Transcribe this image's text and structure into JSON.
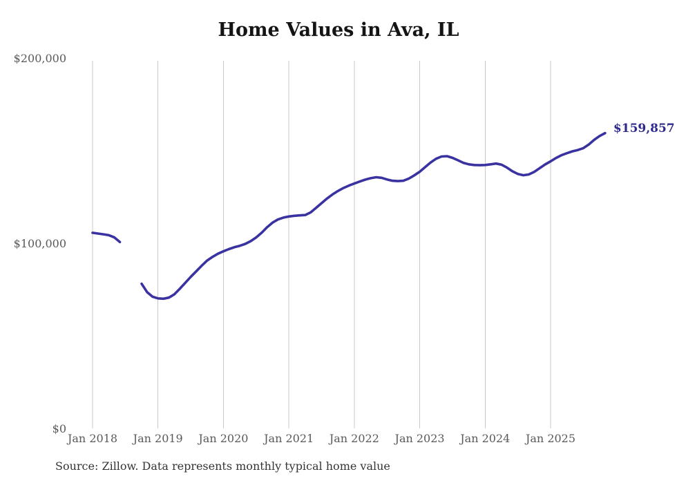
{
  "header": {
    "title": "Home Values in Ava, IL"
  },
  "footer": {
    "source_note": "Source: Zillow. Data represents monthly typical home value"
  },
  "annotation": {
    "final_value_label": "$159,857"
  },
  "colors": {
    "line": "#3a32a0",
    "final_label": "#2e2a8c",
    "grid": "#c9c9c9",
    "axis_text": "#595959",
    "title_text": "#141414",
    "source_text": "#343434",
    "background": "#ffffff"
  },
  "chart_data": {
    "type": "line",
    "title": "Home Values in Ava, IL",
    "xlabel": "",
    "ylabel": "",
    "ylim": [
      0,
      200000
    ],
    "grid": "vertical-only",
    "legend": "none",
    "final_value": 159857,
    "data_gap_months": [
      "2018-07",
      "2018-08",
      "2018-09"
    ],
    "y_ticks": [
      {
        "label": "$200,000",
        "value": 200000
      },
      {
        "label": "$100,000",
        "value": 100000
      },
      {
        "label": "$0",
        "value": 0
      }
    ],
    "x_ticks": [
      {
        "label": "Jan 2018",
        "month": "2018-01"
      },
      {
        "label": "Jan 2019",
        "month": "2019-01"
      },
      {
        "label": "Jan 2020",
        "month": "2020-01"
      },
      {
        "label": "Jan 2021",
        "month": "2021-01"
      },
      {
        "label": "Jan 2022",
        "month": "2022-01"
      },
      {
        "label": "Jan 2023",
        "month": "2023-01"
      },
      {
        "label": "Jan 2024",
        "month": "2024-01"
      },
      {
        "label": "Jan 2025",
        "month": "2025-01"
      }
    ],
    "series": [
      {
        "name": "Monthly typical home value",
        "points": [
          [
            "2018-01",
            106000
          ],
          [
            "2018-02",
            105600
          ],
          [
            "2018-03",
            105200
          ],
          [
            "2018-04",
            104700
          ],
          [
            "2018-05",
            103500
          ],
          [
            "2018-06",
            101000
          ],
          [
            "2018-07",
            null
          ],
          [
            "2018-08",
            null
          ],
          [
            "2018-09",
            null
          ],
          [
            "2018-10",
            78500
          ],
          [
            "2018-11",
            74000
          ],
          [
            "2018-12",
            71500
          ],
          [
            "2019-01",
            70600
          ],
          [
            "2019-02",
            70400
          ],
          [
            "2019-03",
            71000
          ],
          [
            "2019-04",
            72800
          ],
          [
            "2019-05",
            75800
          ],
          [
            "2019-06",
            79000
          ],
          [
            "2019-07",
            82200
          ],
          [
            "2019-08",
            85200
          ],
          [
            "2019-09",
            88200
          ],
          [
            "2019-10",
            91000
          ],
          [
            "2019-11",
            93000
          ],
          [
            "2019-12",
            94700
          ],
          [
            "2020-01",
            96000
          ],
          [
            "2020-02",
            97200
          ],
          [
            "2020-03",
            98200
          ],
          [
            "2020-04",
            99000
          ],
          [
            "2020-05",
            100000
          ],
          [
            "2020-06",
            101500
          ],
          [
            "2020-07",
            103500
          ],
          [
            "2020-08",
            106000
          ],
          [
            "2020-09",
            109000
          ],
          [
            "2020-10",
            111500
          ],
          [
            "2020-11",
            113200
          ],
          [
            "2020-12",
            114200
          ],
          [
            "2021-01",
            114800
          ],
          [
            "2021-02",
            115200
          ],
          [
            "2021-03",
            115400
          ],
          [
            "2021-04",
            115600
          ],
          [
            "2021-05",
            117000
          ],
          [
            "2021-06",
            119500
          ],
          [
            "2021-07",
            122000
          ],
          [
            "2021-08",
            124500
          ],
          [
            "2021-09",
            126700
          ],
          [
            "2021-10",
            128600
          ],
          [
            "2021-11",
            130200
          ],
          [
            "2021-12",
            131500
          ],
          [
            "2022-01",
            132600
          ],
          [
            "2022-02",
            133700
          ],
          [
            "2022-03",
            134700
          ],
          [
            "2022-04",
            135500
          ],
          [
            "2022-05",
            136000
          ],
          [
            "2022-06",
            135700
          ],
          [
            "2022-07",
            134800
          ],
          [
            "2022-08",
            134100
          ],
          [
            "2022-09",
            133900
          ],
          [
            "2022-10",
            134100
          ],
          [
            "2022-11",
            135300
          ],
          [
            "2022-12",
            137000
          ],
          [
            "2023-01",
            139000
          ],
          [
            "2023-02",
            141500
          ],
          [
            "2023-03",
            144000
          ],
          [
            "2023-04",
            146000
          ],
          [
            "2023-05",
            147200
          ],
          [
            "2023-06",
            147400
          ],
          [
            "2023-07",
            146500
          ],
          [
            "2023-08",
            145200
          ],
          [
            "2023-09",
            143800
          ],
          [
            "2023-10",
            143000
          ],
          [
            "2023-11",
            142600
          ],
          [
            "2023-12",
            142500
          ],
          [
            "2024-01",
            142600
          ],
          [
            "2024-02",
            143000
          ],
          [
            "2024-03",
            143400
          ],
          [
            "2024-04",
            142800
          ],
          [
            "2024-05",
            141200
          ],
          [
            "2024-06",
            139200
          ],
          [
            "2024-07",
            137800
          ],
          [
            "2024-08",
            137100
          ],
          [
            "2024-09",
            137500
          ],
          [
            "2024-10",
            138900
          ],
          [
            "2024-11",
            140900
          ],
          [
            "2024-12",
            142900
          ],
          [
            "2025-01",
            144600
          ],
          [
            "2025-02",
            146400
          ],
          [
            "2025-03",
            147900
          ],
          [
            "2025-04",
            149000
          ],
          [
            "2025-05",
            150000
          ],
          [
            "2025-06",
            150700
          ],
          [
            "2025-07",
            151700
          ],
          [
            "2025-08",
            153700
          ],
          [
            "2025-09",
            156200
          ],
          [
            "2025-10",
            158300
          ],
          [
            "2025-11",
            159857
          ]
        ]
      }
    ]
  }
}
